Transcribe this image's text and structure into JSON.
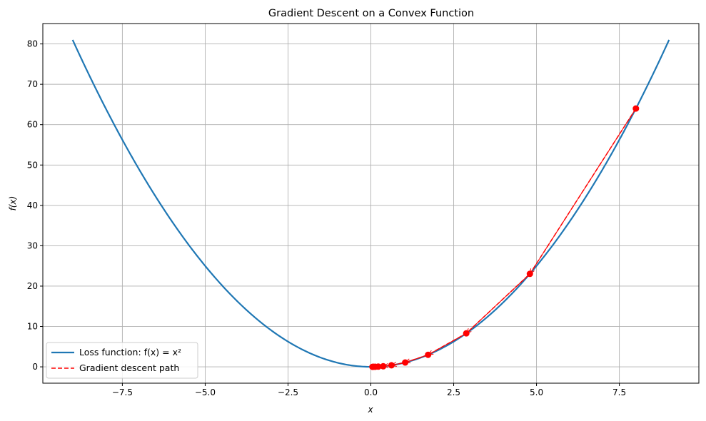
{
  "chart_data": {
    "type": "line",
    "title": "Gradient Descent on a Convex Function",
    "xlabel": "x",
    "ylabel": "f(x)",
    "xlim": [
      -9.9,
      9.9
    ],
    "ylim": [
      -4.05,
      85.05
    ],
    "xticks": [
      -7.5,
      -5.0,
      -2.5,
      0.0,
      2.5,
      5.0,
      7.5
    ],
    "xtick_labels": [
      "−7.5",
      "−5.0",
      "−2.5",
      "0.0",
      "2.5",
      "5.0",
      "7.5"
    ],
    "yticks": [
      0,
      10,
      20,
      30,
      40,
      50,
      60,
      70,
      80
    ],
    "ytick_labels": [
      "0",
      "10",
      "20",
      "30",
      "40",
      "50",
      "60",
      "70",
      "80"
    ],
    "grid": true,
    "legend_position": "lower-left",
    "colors": {
      "curve": "#1f77b4",
      "path": "#ff0000"
    },
    "series": [
      {
        "name": "Loss function: f(x) = x²",
        "function": "x^2",
        "x_range": [
          -9,
          9
        ],
        "style": "solid"
      },
      {
        "name": "Gradient descent path",
        "style": "dashed",
        "markers": true,
        "arrows": true,
        "x": [
          8.0,
          4.8,
          2.88,
          1.728,
          1.0368,
          0.6221,
          0.3732,
          0.2239,
          0.1344,
          0.0806,
          0.0484
        ],
        "y": [
          64.0,
          23.04,
          8.2944,
          2.986,
          1.075,
          0.387,
          0.1393,
          0.0502,
          0.018,
          0.0065,
          0.0023
        ]
      }
    ]
  }
}
